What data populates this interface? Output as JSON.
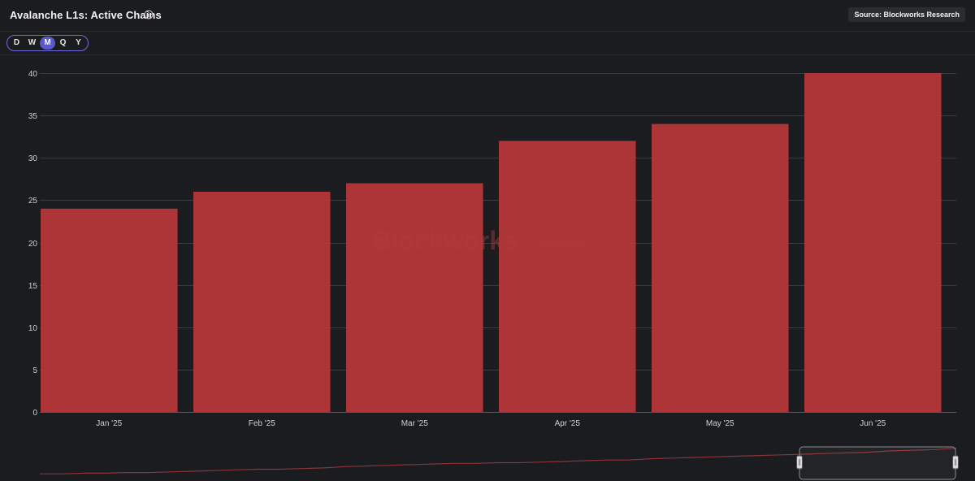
{
  "header": {
    "title": "Avalanche L1s: Active Chains",
    "source": "Source: Blockworks Research"
  },
  "timeframes": [
    "D",
    "W",
    "M",
    "Q",
    "Y"
  ],
  "active_timeframe": "M",
  "watermark": {
    "brand": "Blockworks",
    "suffix": "Research"
  },
  "colors": {
    "bar": "#b5373a",
    "accent": "#5b58c9",
    "background": "#1b1c1f"
  },
  "chart_data": {
    "type": "bar",
    "title": "Avalanche L1s: Active Chains",
    "categories": [
      "Jan '25",
      "Feb '25",
      "Mar '25",
      "Apr '25",
      "May '25",
      "Jun '25"
    ],
    "values": [
      24,
      26,
      27,
      32,
      34,
      40
    ],
    "ylim": [
      0,
      40
    ],
    "yticks": [
      0,
      5,
      10,
      15,
      20,
      25,
      30,
      35,
      40
    ],
    "xlabel": "",
    "ylabel": "",
    "grid": true,
    "navigator_values": [
      1,
      1,
      2,
      2,
      3,
      3,
      4,
      5,
      6,
      7,
      8,
      8,
      9,
      10,
      12,
      13,
      14,
      15,
      16,
      17,
      17,
      18,
      18,
      19,
      20,
      21,
      22,
      22,
      24,
      25,
      26,
      27,
      28,
      29,
      30,
      31,
      32,
      33,
      34,
      36,
      37,
      38,
      40
    ]
  }
}
